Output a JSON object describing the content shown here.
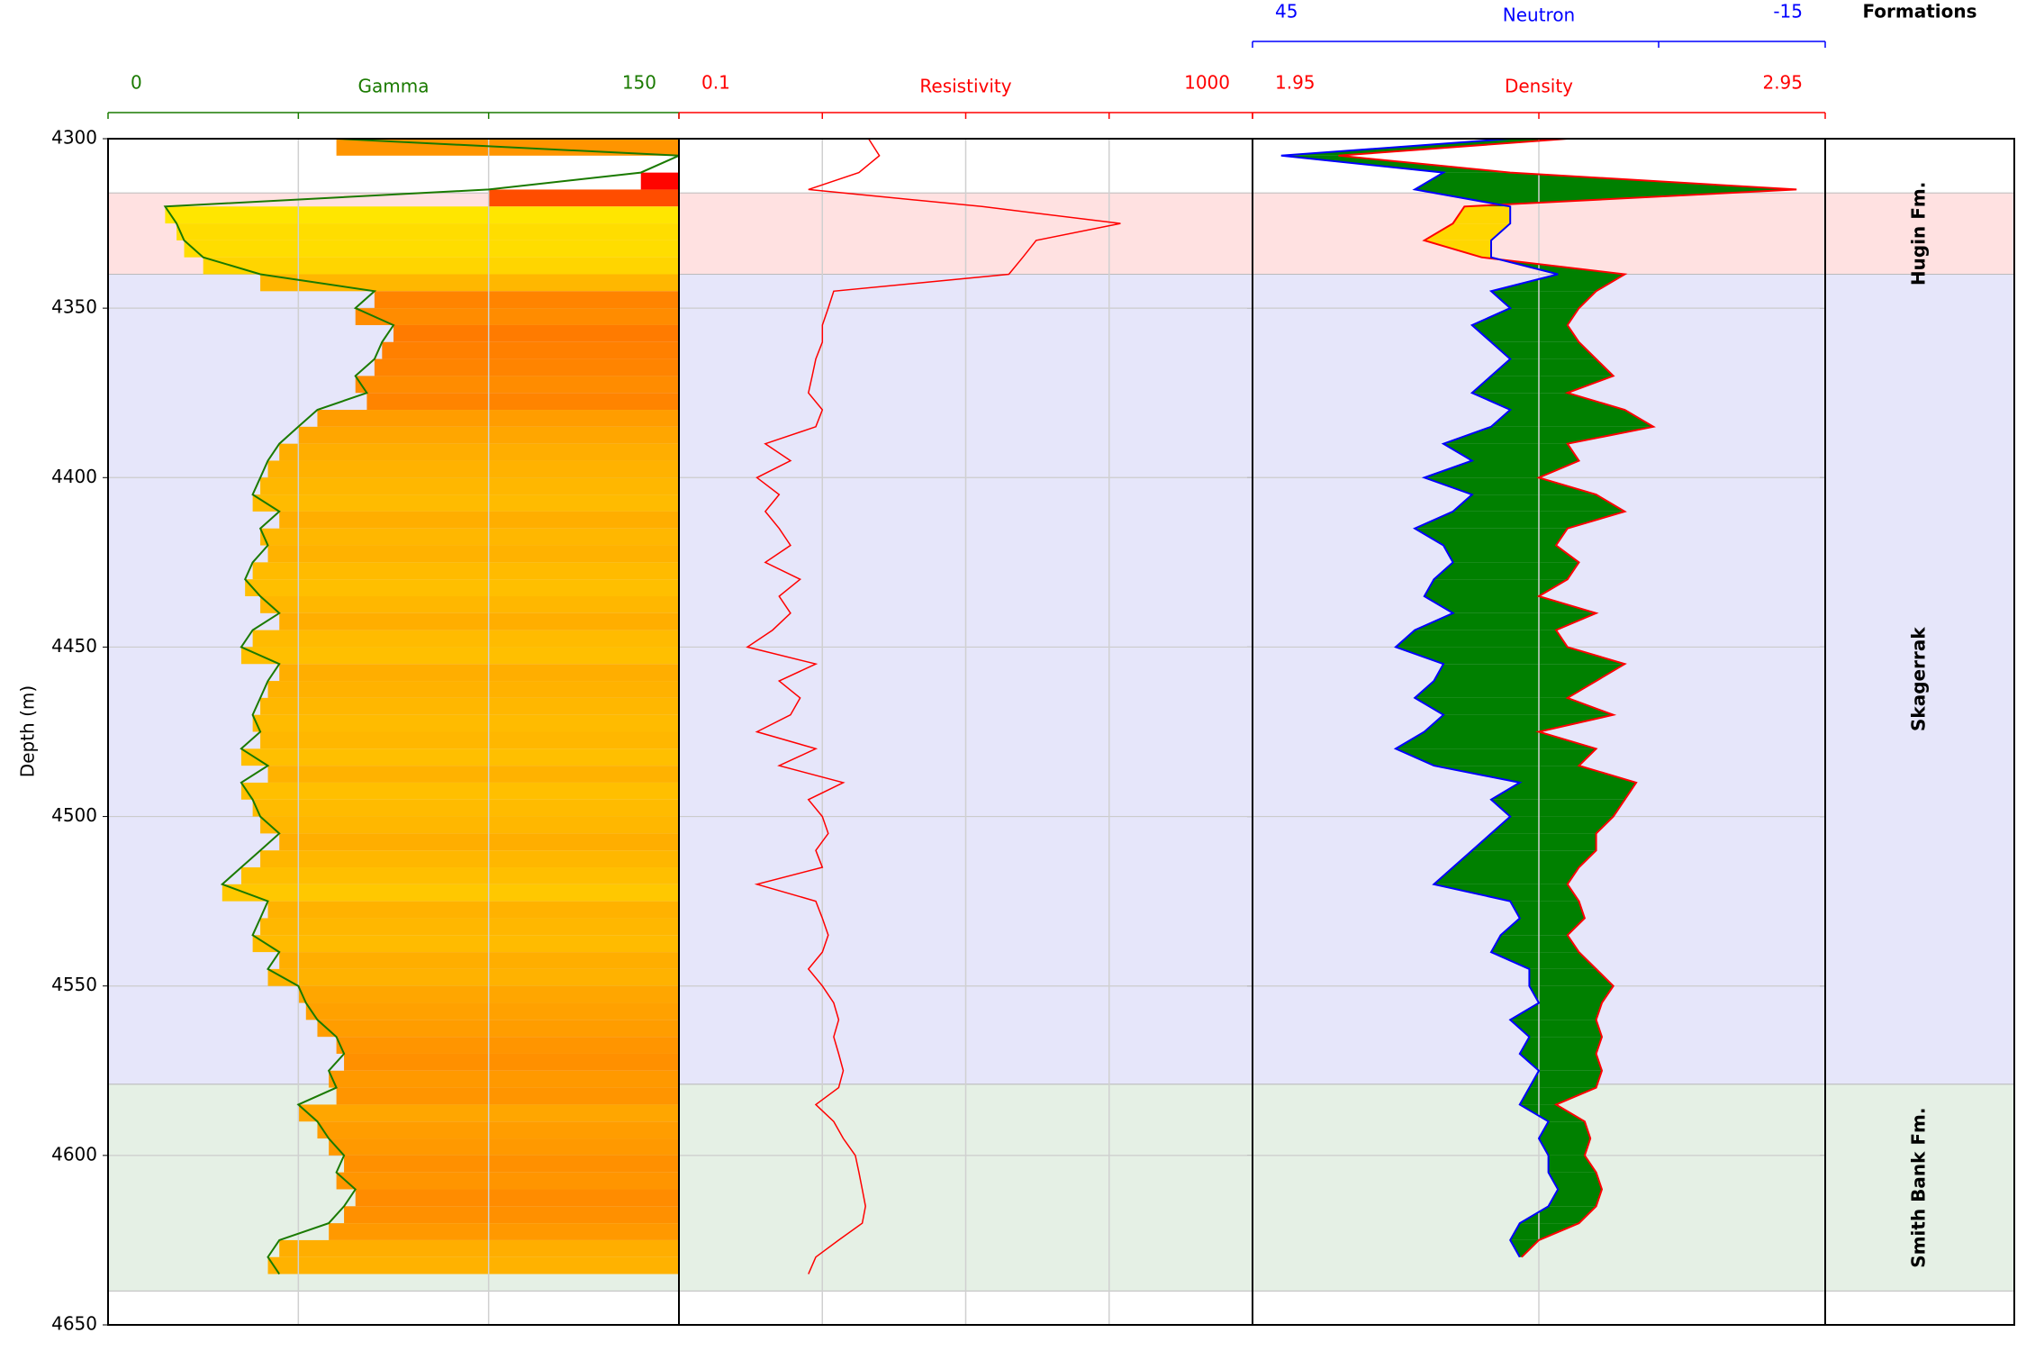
{
  "chart_data": [
    {
      "type": "gamma",
      "title": "Gamma",
      "ylabel": "Depth (m)",
      "color": "#1a7a00",
      "xlim": [
        0,
        150
      ],
      "xgrid": [
        50,
        100
      ],
      "ylim": [
        4300,
        4650
      ],
      "y_inverted": true,
      "yticks": [
        4300,
        4350,
        4400,
        4450,
        4500,
        4550,
        4600,
        4650
      ],
      "grid": true,
      "depth": [
        4300,
        4305,
        4310,
        4315,
        4320,
        4325,
        4330,
        4335,
        4340,
        4345,
        4350,
        4355,
        4360,
        4365,
        4370,
        4375,
        4380,
        4385,
        4390,
        4395,
        4400,
        4405,
        4410,
        4415,
        4420,
        4425,
        4430,
        4435,
        4440,
        4445,
        4450,
        4455,
        4460,
        4465,
        4470,
        4475,
        4480,
        4485,
        4490,
        4495,
        4500,
        4505,
        4510,
        4515,
        4520,
        4525,
        4530,
        4535,
        4540,
        4545,
        4550,
        4555,
        4560,
        4565,
        4570,
        4575,
        4580,
        4585,
        4590,
        4595,
        4600,
        4605,
        4610,
        4615,
        4620,
        4625,
        4630,
        4635
      ],
      "values": [
        60,
        150,
        140,
        100,
        15,
        18,
        20,
        25,
        40,
        70,
        65,
        75,
        72,
        70,
        65,
        68,
        55,
        50,
        45,
        42,
        40,
        38,
        45,
        40,
        42,
        38,
        36,
        40,
        45,
        38,
        35,
        45,
        42,
        40,
        38,
        40,
        35,
        42,
        35,
        38,
        40,
        45,
        40,
        35,
        30,
        42,
        40,
        38,
        45,
        42,
        50,
        52,
        55,
        60,
        62,
        58,
        60,
        50,
        55,
        58,
        62,
        60,
        65,
        62,
        58,
        45,
        42,
        45
      ]
    },
    {
      "type": "resistivity",
      "title": "Resistivity",
      "color": "#ff0000",
      "xlim": [
        0.1,
        1000
      ],
      "log": true,
      "xgrid": [
        1,
        10,
        100
      ],
      "depth": [
        4300,
        4305,
        4310,
        4315,
        4320,
        4325,
        4330,
        4335,
        4340,
        4345,
        4350,
        4355,
        4360,
        4365,
        4370,
        4375,
        4380,
        4385,
        4390,
        4395,
        4400,
        4405,
        4410,
        4415,
        4420,
        4425,
        4430,
        4435,
        4440,
        4445,
        4450,
        4455,
        4460,
        4465,
        4470,
        4475,
        4480,
        4485,
        4490,
        4495,
        4500,
        4505,
        4510,
        4515,
        4520,
        4525,
        4530,
        4535,
        4540,
        4545,
        4550,
        4555,
        4560,
        4565,
        4570,
        4575,
        4580,
        4585,
        4590,
        4595,
        4600,
        4605,
        4610,
        4615,
        4620,
        4625,
        4630,
        4635
      ],
      "values": [
        2.1,
        2.5,
        1.8,
        0.8,
        13,
        120,
        31,
        25,
        20,
        1.2,
        1.1,
        1.0,
        1.0,
        0.9,
        0.85,
        0.8,
        1.0,
        0.9,
        0.4,
        0.6,
        0.35,
        0.5,
        0.4,
        0.5,
        0.6,
        0.4,
        0.7,
        0.5,
        0.6,
        0.45,
        0.3,
        0.9,
        0.5,
        0.7,
        0.6,
        0.35,
        0.9,
        0.5,
        1.4,
        0.8,
        1.0,
        1.1,
        0.9,
        1.0,
        0.35,
        0.9,
        1.0,
        1.1,
        1.0,
        0.8,
        1.0,
        1.2,
        1.3,
        1.2,
        1.3,
        1.4,
        1.3,
        0.9,
        1.2,
        1.4,
        1.7,
        1.8,
        1.9,
        2.0,
        1.9,
        1.3,
        0.9,
        0.8
      ]
    },
    {
      "type": "density-neutron",
      "xgrid": [
        2.45
      ],
      "shale_fill": "#008000",
      "sand_fill": "#ffd700",
      "depth": [
        4300,
        4305,
        4310,
        4315,
        4320,
        4325,
        4330,
        4335,
        4340,
        4345,
        4350,
        4355,
        4360,
        4365,
        4370,
        4375,
        4380,
        4385,
        4390,
        4395,
        4400,
        4405,
        4410,
        4415,
        4420,
        4425,
        4430,
        4435,
        4440,
        4445,
        4450,
        4455,
        4460,
        4465,
        4470,
        4475,
        4480,
        4485,
        4490,
        4495,
        4500,
        4505,
        4510,
        4515,
        4520,
        4525,
        4530,
        4535,
        4540,
        4545,
        4550,
        4555,
        4560,
        4565,
        4570,
        4575,
        4580,
        4585,
        4590,
        4595,
        4600,
        4605,
        4610,
        4615,
        4620,
        4625,
        4630
      ],
      "series": [
        {
          "name": "Density",
          "color": "#ff0000",
          "xlim": [
            1.95,
            2.95
          ],
          "values": [
            2.5,
            2.1,
            2.4,
            2.9,
            2.32,
            2.3,
            2.25,
            2.35,
            2.6,
            2.55,
            2.52,
            2.5,
            2.52,
            2.55,
            2.58,
            2.5,
            2.6,
            2.65,
            2.5,
            2.52,
            2.45,
            2.55,
            2.6,
            2.5,
            2.48,
            2.52,
            2.5,
            2.45,
            2.55,
            2.48,
            2.5,
            2.6,
            2.55,
            2.5,
            2.58,
            2.45,
            2.55,
            2.52,
            2.62,
            2.6,
            2.58,
            2.55,
            2.55,
            2.52,
            2.5,
            2.52,
            2.53,
            2.5,
            2.52,
            2.55,
            2.58,
            2.56,
            2.55,
            2.56,
            2.55,
            2.56,
            2.55,
            2.48,
            2.53,
            2.54,
            2.53,
            2.55,
            2.56,
            2.55,
            2.52,
            2.45,
            2.42
          ]
        },
        {
          "name": "Neutron",
          "color": "#0000ff",
          "xlim": [
            45,
            -15
          ],
          "values": [
            18,
            42,
            25,
            28,
            18,
            18,
            20,
            20,
            13,
            20,
            18,
            22,
            20,
            18,
            20,
            22,
            18,
            20,
            25,
            22,
            27,
            22,
            24,
            28,
            25,
            24,
            26,
            27,
            24,
            28,
            30,
            25,
            26,
            28,
            25,
            27,
            30,
            26,
            17,
            20,
            18,
            20,
            22,
            24,
            26,
            18,
            17,
            19,
            20,
            16,
            16,
            15,
            18,
            16,
            17,
            15,
            16,
            17,
            14,
            15,
            14,
            14,
            13,
            14,
            17,
            18,
            17
          ]
        }
      ]
    },
    {
      "type": "formations",
      "title": "Formations",
      "formations": [
        {
          "name": "Hugin Fm.",
          "top": 4316,
          "base": 4340,
          "color": "#ffe1e1"
        },
        {
          "name": "Skagerrak",
          "top": 4340,
          "base": 4579,
          "color": "#e6e6fa"
        },
        {
          "name": "Smith Bank Fm.",
          "top": 4579,
          "base": 4640,
          "color": "#e5f0e5"
        }
      ]
    }
  ]
}
